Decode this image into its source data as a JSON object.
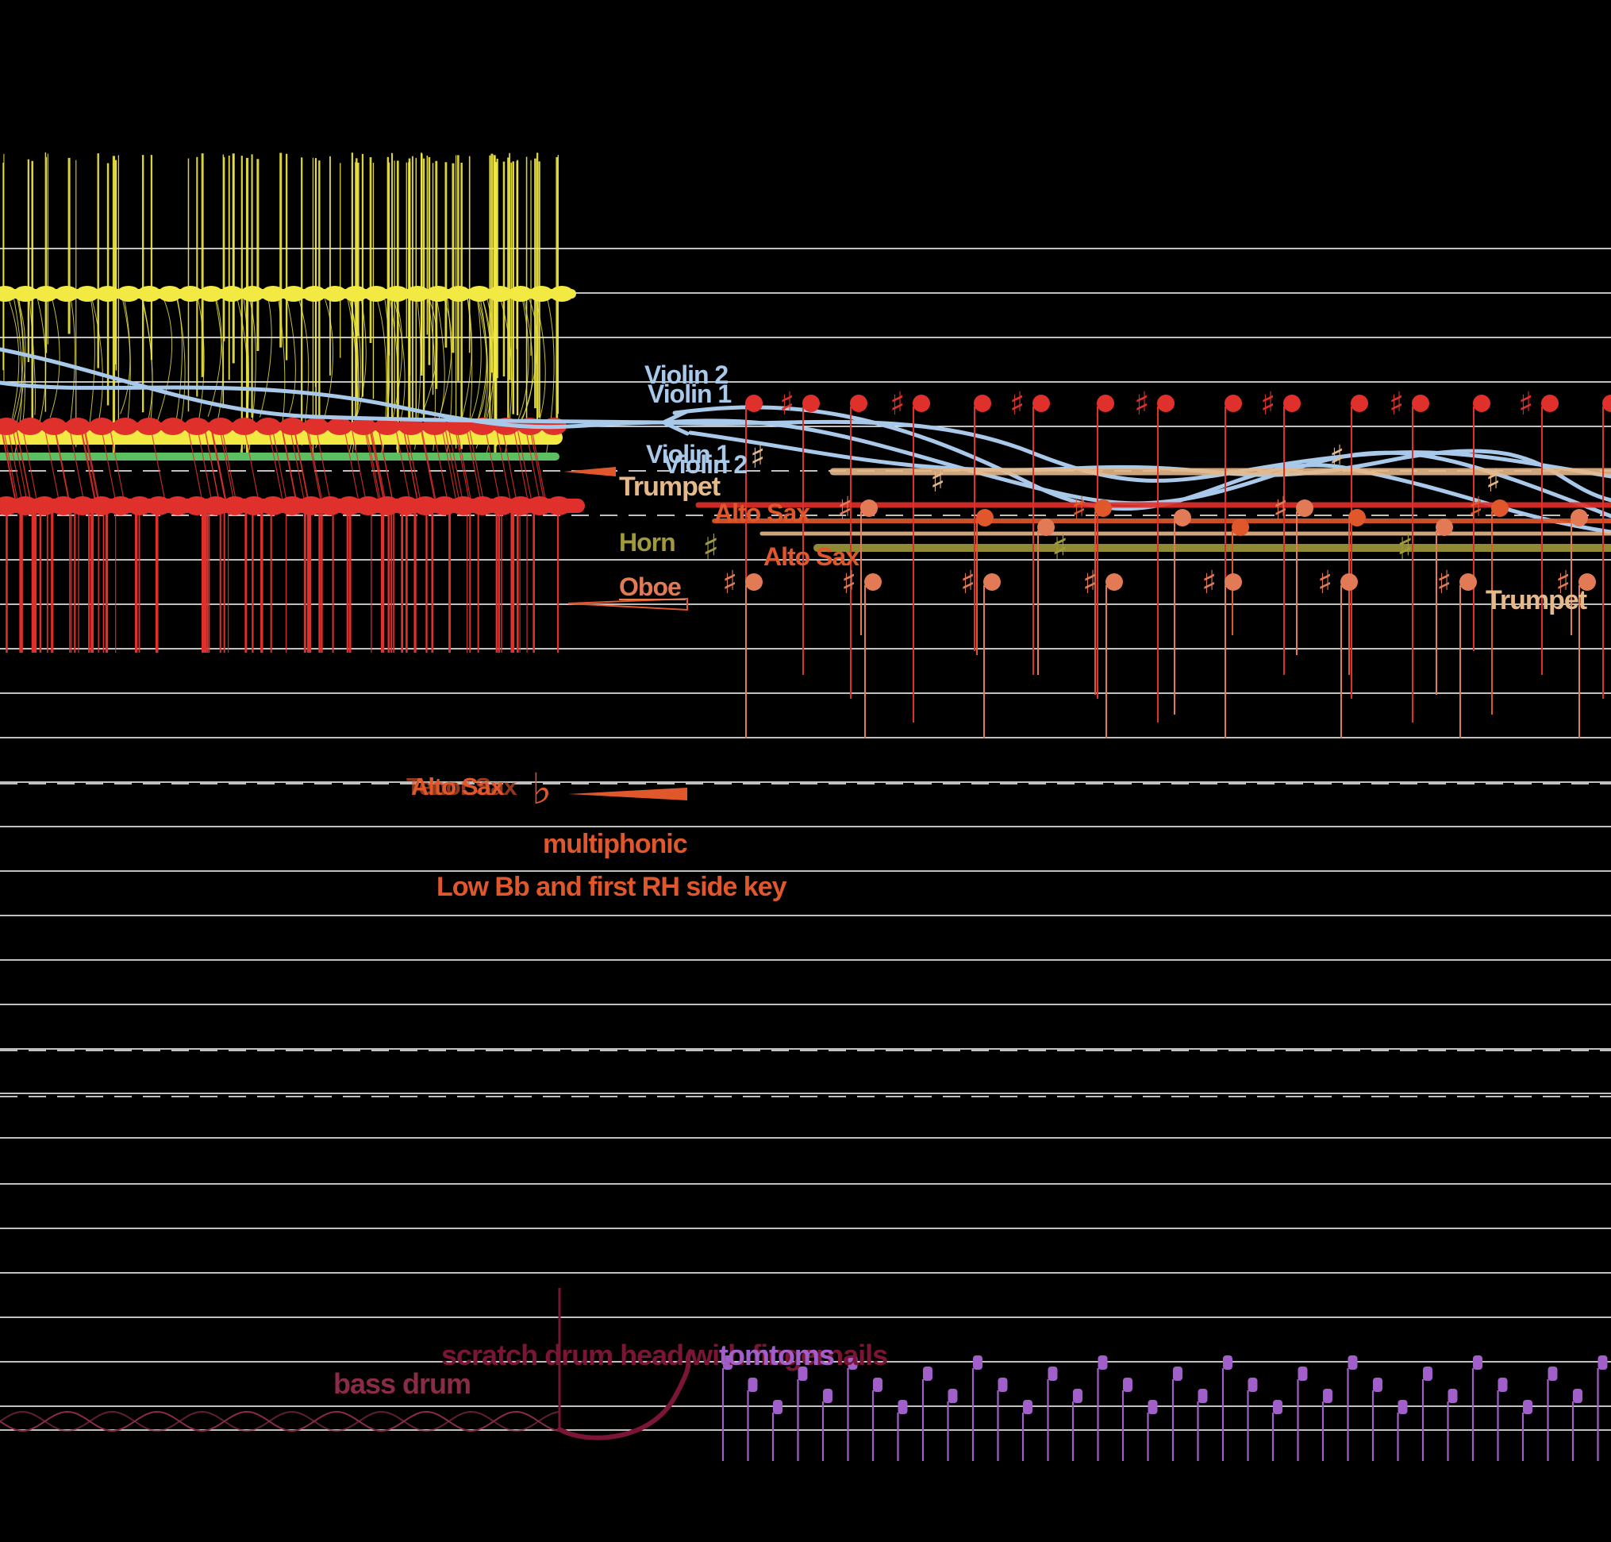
{
  "colors": {
    "background": "#000000",
    "staff": "#ffffff",
    "violin": "#a9c9ea",
    "trumpet": "#e6b98a",
    "alto_sax": "#e0572b",
    "horn": "#a19a3a",
    "oboe": "#e27a55",
    "red_notes": "#e0302b",
    "yellow": "#f2ea42",
    "green": "#5cc063",
    "bass_drum": "#8a2c45",
    "scratch": "#7a1535",
    "tomtoms": "#a15fc9"
  },
  "labels": {
    "violin2_top": "Violin 2",
    "violin1_top": "Violin 1",
    "violin1_mid": "Violin 1",
    "violin2_mid": "Violin 2",
    "trumpet_left": "Trumpet",
    "alto_sax_1": "Alto Sax",
    "horn": "Horn",
    "alto_sax_2": "Alto Sax",
    "oboe": "Oboe",
    "trumpet_right": "Trumpet",
    "alto_sax_overlap_a": "Alto Sax",
    "alto_sax_overlap_b": "Tenor Sax",
    "multiphonic": "multiphonic",
    "fingering": "Low Bb and first RH side key",
    "scratch": "scratch drum head with fingernails",
    "tomtoms": "tomtoms",
    "bass_drum": "bass drum"
  },
  "glyphs": {
    "sharp": "♯",
    "flat": "♭"
  }
}
